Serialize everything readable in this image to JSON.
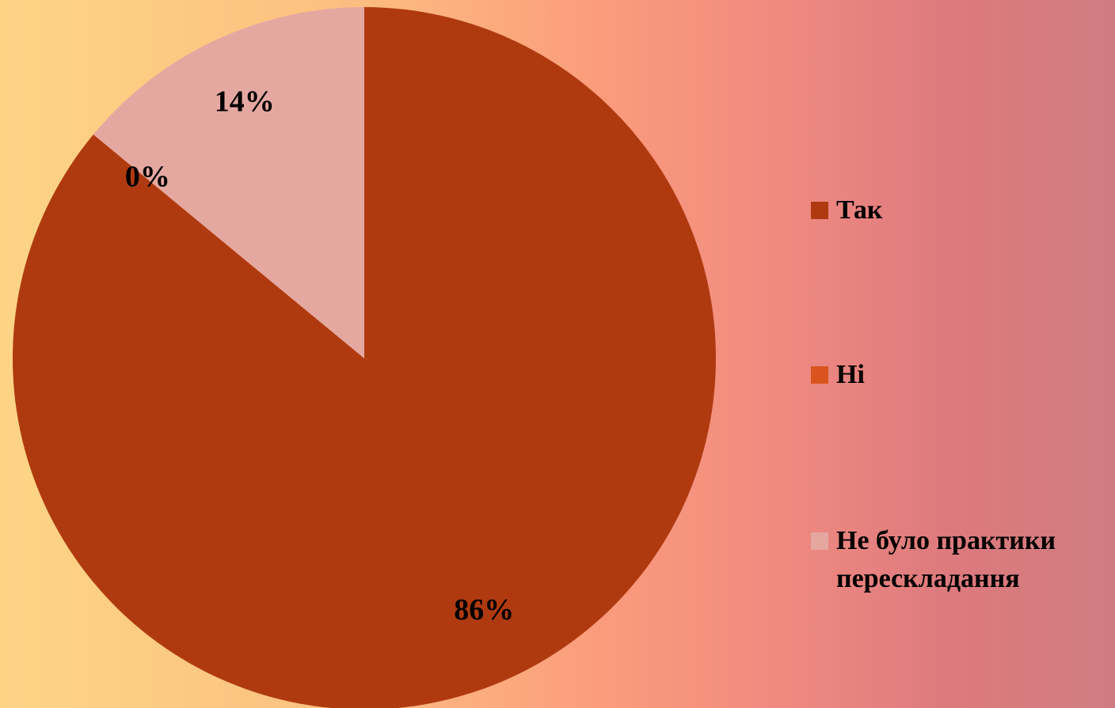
{
  "chart_data": {
    "type": "pie",
    "categories": [
      "Так",
      "Ні",
      "Не було практики перескладання"
    ],
    "values": [
      86,
      0,
      14
    ],
    "value_labels": [
      "86%",
      "0%",
      "14%"
    ],
    "colors": [
      "#b03a10",
      "#d9541e",
      "#e5a8a0"
    ],
    "legend": "right"
  }
}
